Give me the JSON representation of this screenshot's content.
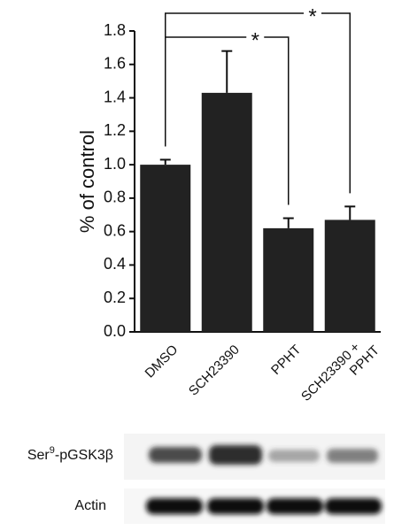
{
  "chart_data": {
    "type": "bar",
    "y_label": "% of control",
    "categories": [
      "DMSO",
      "SCH23390",
      "PPHT",
      "SCH23390 + PPHT"
    ],
    "values": [
      1.0,
      1.43,
      0.62,
      0.67
    ],
    "errors": [
      0.03,
      0.25,
      0.06,
      0.08
    ],
    "color": "#222222",
    "ylim": [
      0,
      1.8
    ],
    "yticks": [
      {
        "value": 0,
        "label": "0.0"
      },
      0.2,
      0.4,
      0.6,
      0.8,
      {
        "value": 1,
        "label": "1.0"
      },
      1.2,
      1.4,
      1.6,
      1.8
    ],
    "significance": [
      {
        "from": 0,
        "to": 3,
        "label": "*"
      },
      {
        "from": 0,
        "to": 2,
        "label": "*"
      }
    ]
  },
  "blot": {
    "rows": [
      {
        "base": "Ser",
        "sup": "9",
        "rest": "-pGSK3β"
      },
      {
        "base": "Actin"
      }
    ]
  }
}
